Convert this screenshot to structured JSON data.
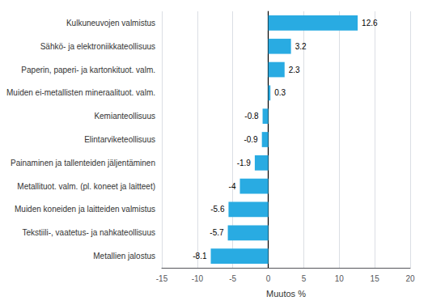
{
  "chart_data": {
    "type": "bar",
    "orientation": "horizontal",
    "categories": [
      "Metallien jalostus",
      "Tekstiili-, vaatetus- ja nahkateollisuus",
      "Muiden koneiden ja laitteiden valmistus",
      "Metallituot. valm. (pl. koneet ja laitteet)",
      "Painaminen ja tallenteiden jäljentäminen",
      "Elintarviketeollisuus",
      "Kemianteollisuus",
      "Muiden ei-metallisten mineraalituot. valm.",
      "Paperin, paperi- ja kartonkituot. valm.",
      "Sähkö- ja elektroniikkateollisuus",
      "Kulkuneuvojen valmistus"
    ],
    "values": [
      -8.1,
      -5.7,
      -5.6,
      -4.0,
      -1.9,
      -0.9,
      -0.8,
      0.3,
      2.3,
      3.2,
      12.6
    ],
    "color": "#29abe2",
    "xlabel": "Muutos %",
    "xlim": [
      -15,
      20
    ],
    "xticks": [
      -15,
      -10,
      -5,
      0,
      5,
      10,
      15,
      20
    ],
    "grid": true,
    "data_labels": true
  }
}
